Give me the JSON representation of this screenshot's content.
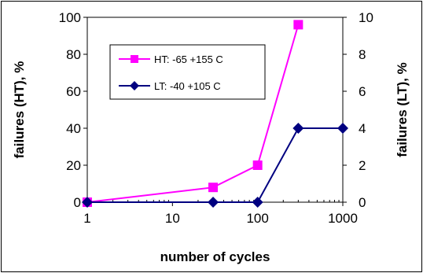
{
  "chart_data": {
    "type": "line",
    "x_scale": "log",
    "xlabel": "number of cycles",
    "xlim": [
      1,
      1000
    ],
    "x_tick_labels": [
      "1",
      "10",
      "100",
      "1000"
    ],
    "ylabel_left": "failures (HT), %",
    "ylim_left": [
      0,
      100
    ],
    "y_left_tick_labels": [
      "0",
      "20",
      "40",
      "60",
      "80",
      "100"
    ],
    "ylabel_right": "failures (LT), %",
    "ylim_right": [
      0,
      10
    ],
    "y_right_tick_labels": [
      "0",
      "2",
      "4",
      "6",
      "8",
      "10"
    ],
    "grid": false,
    "legend_position": "upper-left inside plot",
    "series": [
      {
        "name": "HT: -65 +155 C",
        "axis": "left",
        "color": "#FF00FF",
        "marker": "square",
        "x": [
          1,
          30,
          100,
          300
        ],
        "y": [
          0,
          8,
          20,
          96
        ]
      },
      {
        "name": "LT: -40 +105 C",
        "axis": "right",
        "color": "#000080",
        "marker": "diamond",
        "x": [
          1,
          30,
          100,
          300,
          1000
        ],
        "y": [
          0,
          0,
          0,
          4,
          4
        ]
      }
    ]
  }
}
